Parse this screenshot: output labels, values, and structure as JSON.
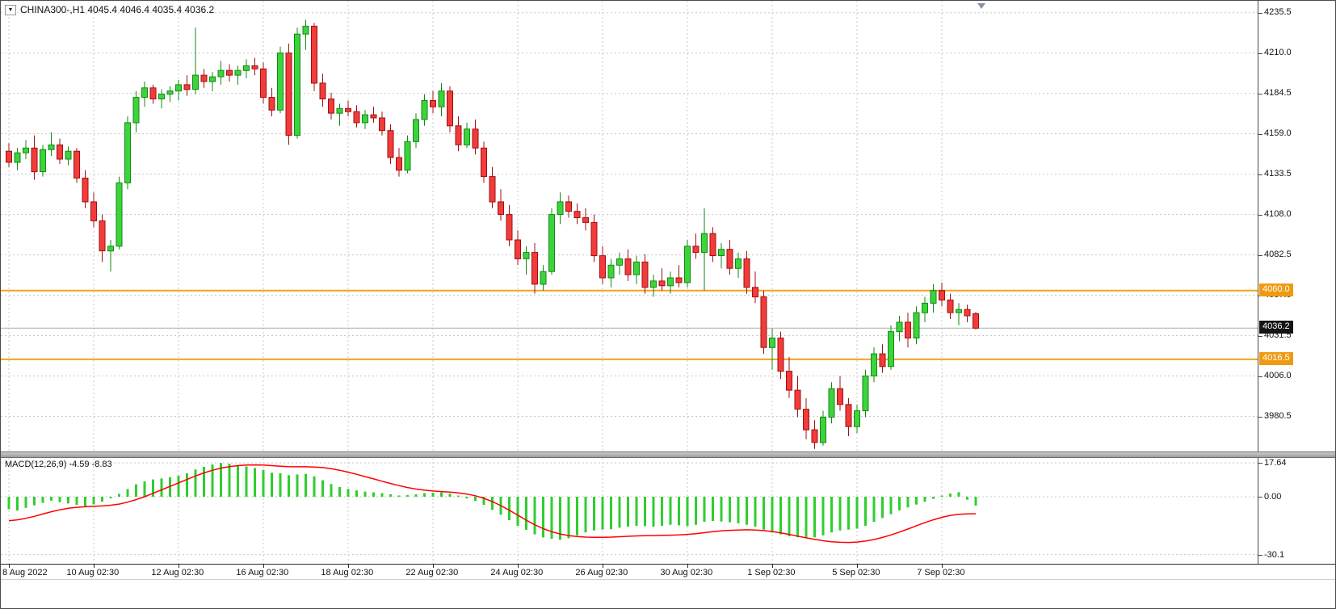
{
  "window": {
    "title_text": "CHINA300-,H1 4045.4 4046.4 4035.4 4036.2",
    "symbol": "CHINA300-",
    "timeframe": "H1",
    "open": "4045.4",
    "high": "4046.4",
    "low": "4035.4",
    "close": "4036.2"
  },
  "icons": {
    "dropdown_triangle": "▼"
  },
  "indicator": {
    "label": "MACD(12,26,9) -4.59 -8.83",
    "name": "MACD",
    "params": "12,26,9",
    "macd_value": "-4.59",
    "signal_value": "-8.83"
  },
  "price_scale": {
    "ticks": [
      {
        "value": 4235.5,
        "label": "4235.5"
      },
      {
        "value": 4210.0,
        "label": "4210.0"
      },
      {
        "value": 4184.5,
        "label": "4184.5"
      },
      {
        "value": 4159.0,
        "label": "4159.0"
      },
      {
        "value": 4133.5,
        "label": "4133.5"
      },
      {
        "value": 4108.0,
        "label": "4108.0"
      },
      {
        "value": 4082.5,
        "label": "4082.5"
      },
      {
        "value": 4057.0,
        "label": "4057.0"
      },
      {
        "value": 4031.5,
        "label": "4031.5"
      },
      {
        "value": 4006.0,
        "label": "4006.0"
      },
      {
        "value": 3980.5,
        "label": "3980.5"
      }
    ],
    "bid": {
      "price": 4036.2,
      "label": "4036.2"
    }
  },
  "levels": [
    {
      "price": 4060.0,
      "label": "4060.0"
    },
    {
      "price": 4016.5,
      "label": "4016.5"
    }
  ],
  "macd_scale": {
    "ticks": [
      {
        "value": 17.64,
        "label": "17.64"
      },
      {
        "value": 0,
        "label": "0.00"
      },
      {
        "value": -30.1,
        "label": "-30.1"
      }
    ]
  },
  "time_axis": {
    "labels": [
      {
        "text": "8 Aug 2022",
        "index": 0
      },
      {
        "text": "10 Aug 02:30",
        "index": 10
      },
      {
        "text": "12 Aug 02:30",
        "index": 20
      },
      {
        "text": "16 Aug 02:30",
        "index": 30
      },
      {
        "text": "18 Aug 02:30",
        "index": 40
      },
      {
        "text": "22 Aug 02:30",
        "index": 50
      },
      {
        "text": "24 Aug 02:30",
        "index": 60
      },
      {
        "text": "26 Aug 02:30",
        "index": 70
      },
      {
        "text": "30 Aug 02:30",
        "index": 80
      },
      {
        "text": "1 Sep 02:30",
        "index": 90
      },
      {
        "text": "5 Sep 02:30",
        "index": 100
      },
      {
        "text": "7 Sep 02:30",
        "index": 110
      }
    ]
  },
  "colors": {
    "up_fill": "#3dd33d",
    "up_stroke": "#128a12",
    "down_fill": "#f23b3b",
    "down_stroke": "#a01010",
    "histogram": "#2fce2f",
    "signal_line": "#ff0000",
    "level_line": "#f5a21b",
    "level_tag_bg": "#ef9b12",
    "bid_tag_bg": "#141414",
    "grid": "#c8c8c8",
    "axis": "#2b2b2b",
    "bid_line": "#ababab"
  },
  "chart_data": {
    "type": "candlestick",
    "title": "CHINA300-,H1",
    "symbol": "CHINA300-",
    "timeframe": "H1",
    "legend": "MACD(12,26,9)",
    "grid": true,
    "last_price": 4036.2,
    "overlay_levels": [
      4060.0,
      4016.5
    ],
    "price_axis": {
      "min": 3958.3,
      "max": 4243.0,
      "ticks": [
        4235.5,
        4210.0,
        4184.5,
        4159.0,
        4133.5,
        4108.0,
        4082.5,
        4057.0,
        4031.5,
        4006.0,
        3980.5
      ]
    },
    "time_labels": [
      "8 Aug 2022",
      "10 Aug 02:30",
      "12 Aug 02:30",
      "16 Aug 02:30",
      "18 Aug 02:30",
      "22 Aug 02:30",
      "24 Aug 02:30",
      "26 Aug 02:30",
      "30 Aug 02:30",
      "1 Sep 02:30",
      "5 Sep 02:30",
      "7 Sep 02:30"
    ],
    "time_label_indices": [
      0,
      10,
      20,
      30,
      40,
      50,
      60,
      70,
      80,
      90,
      100,
      110
    ],
    "candles_ohlc": [
      [
        4148,
        4153,
        4138,
        4141
      ],
      [
        4141,
        4150,
        4136,
        4147
      ],
      [
        4147,
        4155,
        4143,
        4150
      ],
      [
        4150,
        4158,
        4130,
        4135
      ],
      [
        4135,
        4152,
        4132,
        4149
      ],
      [
        4149,
        4160,
        4145,
        4152
      ],
      [
        4152,
        4156,
        4140,
        4143
      ],
      [
        4143,
        4151,
        4139,
        4148
      ],
      [
        4148,
        4150,
        4128,
        4131
      ],
      [
        4131,
        4136,
        4112,
        4116
      ],
      [
        4116,
        4122,
        4100,
        4104
      ],
      [
        4104,
        4108,
        4078,
        4085
      ],
      [
        4085,
        4092,
        4072,
        4088
      ],
      [
        4088,
        4132,
        4086,
        4128
      ],
      [
        4128,
        4170,
        4124,
        4166
      ],
      [
        4166,
        4186,
        4160,
        4182
      ],
      [
        4182,
        4192,
        4176,
        4188
      ],
      [
        4188,
        4190,
        4178,
        4181
      ],
      [
        4181,
        4187,
        4175,
        4184
      ],
      [
        4184,
        4189,
        4179,
        4186
      ],
      [
        4186,
        4193,
        4180,
        4190
      ],
      [
        4190,
        4196,
        4183,
        4187
      ],
      [
        4187,
        4226,
        4184,
        4196
      ],
      [
        4196,
        4200,
        4188,
        4192
      ],
      [
        4192,
        4198,
        4186,
        4195
      ],
      [
        4195,
        4205,
        4190,
        4199
      ],
      [
        4199,
        4203,
        4192,
        4196
      ],
      [
        4196,
        4202,
        4190,
        4199
      ],
      [
        4199,
        4206,
        4194,
        4202
      ],
      [
        4202,
        4207,
        4196,
        4200
      ],
      [
        4200,
        4204,
        4178,
        4182
      ],
      [
        4182,
        4188,
        4170,
        4174
      ],
      [
        4174,
        4214,
        4172,
        4210
      ],
      [
        4210,
        4216,
        4152,
        4158
      ],
      [
        4158,
        4226,
        4156,
        4222
      ],
      [
        4222,
        4231,
        4212,
        4227
      ],
      [
        4227,
        4229,
        4186,
        4191
      ],
      [
        4191,
        4197,
        4176,
        4181
      ],
      [
        4181,
        4185,
        4168,
        4172
      ],
      [
        4172,
        4178,
        4164,
        4175
      ],
      [
        4175,
        4180,
        4170,
        4173
      ],
      [
        4173,
        4177,
        4163,
        4166
      ],
      [
        4166,
        4174,
        4162,
        4171
      ],
      [
        4171,
        4176,
        4166,
        4169
      ],
      [
        4169,
        4173,
        4158,
        4161
      ],
      [
        4161,
        4165,
        4140,
        4144
      ],
      [
        4144,
        4150,
        4132,
        4136
      ],
      [
        4136,
        4158,
        4134,
        4154
      ],
      [
        4154,
        4172,
        4150,
        4168
      ],
      [
        4168,
        4184,
        4164,
        4180
      ],
      [
        4180,
        4186,
        4172,
        4176
      ],
      [
        4176,
        4191,
        4170,
        4186
      ],
      [
        4186,
        4189,
        4160,
        4164
      ],
      [
        4164,
        4170,
        4148,
        4152
      ],
      [
        4152,
        4166,
        4150,
        4162
      ],
      [
        4162,
        4168,
        4146,
        4150
      ],
      [
        4150,
        4154,
        4128,
        4132
      ],
      [
        4132,
        4138,
        4112,
        4116
      ],
      [
        4116,
        4124,
        4104,
        4108
      ],
      [
        4108,
        4114,
        4088,
        4092
      ],
      [
        4092,
        4098,
        4076,
        4080
      ],
      [
        4080,
        4088,
        4070,
        4084
      ],
      [
        4084,
        4090,
        4058,
        4064
      ],
      [
        4064,
        4076,
        4060,
        4072
      ],
      [
        4072,
        4112,
        4070,
        4108
      ],
      [
        4108,
        4122,
        4102,
        4116
      ],
      [
        4116,
        4120,
        4106,
        4110
      ],
      [
        4110,
        4115,
        4102,
        4106
      ],
      [
        4106,
        4112,
        4098,
        4103
      ],
      [
        4103,
        4108,
        4078,
        4082
      ],
      [
        4082,
        4088,
        4064,
        4068
      ],
      [
        4068,
        4080,
        4062,
        4076
      ],
      [
        4076,
        4084,
        4070,
        4080
      ],
      [
        4080,
        4086,
        4066,
        4070
      ],
      [
        4070,
        4082,
        4064,
        4078
      ],
      [
        4078,
        4083,
        4058,
        4062
      ],
      [
        4062,
        4070,
        4056,
        4066
      ],
      [
        4066,
        4074,
        4060,
        4063
      ],
      [
        4063,
        4072,
        4058,
        4068
      ],
      [
        4068,
        4076,
        4062,
        4065
      ],
      [
        4065,
        4092,
        4062,
        4088
      ],
      [
        4088,
        4096,
        4080,
        4084
      ],
      [
        4084,
        4112,
        4060,
        4096
      ],
      [
        4096,
        4100,
        4078,
        4082
      ],
      [
        4082,
        4090,
        4074,
        4086
      ],
      [
        4086,
        4092,
        4070,
        4074
      ],
      [
        4074,
        4084,
        4068,
        4080
      ],
      [
        4080,
        4085,
        4058,
        4062
      ],
      [
        4062,
        4072,
        4052,
        4056
      ],
      [
        4056,
        4060,
        4020,
        4024
      ],
      [
        4024,
        4036,
        4010,
        4030
      ],
      [
        4030,
        4034,
        4004,
        4009
      ],
      [
        4009,
        4018,
        3992,
        3997
      ],
      [
        3997,
        4006,
        3980,
        3985
      ],
      [
        3985,
        3992,
        3966,
        3972
      ],
      [
        3972,
        3978,
        3960,
        3964
      ],
      [
        3964,
        3984,
        3962,
        3980
      ],
      [
        3980,
        4002,
        3976,
        3998
      ],
      [
        3998,
        4006,
        3984,
        3988
      ],
      [
        3988,
        3992,
        3968,
        3974
      ],
      [
        3974,
        3988,
        3970,
        3984
      ],
      [
        3984,
        4010,
        3980,
        4006
      ],
      [
        4006,
        4024,
        4002,
        4020
      ],
      [
        4020,
        4026,
        4008,
        4012
      ],
      [
        4012,
        4038,
        4010,
        4034
      ],
      [
        4034,
        4044,
        4028,
        4040
      ],
      [
        4040,
        4046,
        4024,
        4030
      ],
      [
        4030,
        4050,
        4026,
        4046
      ],
      [
        4046,
        4056,
        4040,
        4052
      ],
      [
        4052,
        4064,
        4046,
        4060
      ],
      [
        4060,
        4065,
        4050,
        4054
      ],
      [
        4054,
        4058,
        4042,
        4046
      ],
      [
        4046,
        4052,
        4038,
        4048
      ],
      [
        4048,
        4051,
        4040,
        4044
      ],
      [
        4045.4,
        4046.4,
        4035.4,
        4036.2
      ]
    ],
    "macd": {
      "axis": {
        "min": -34.9,
        "max": 20.2,
        "ticks": [
          17.64,
          0,
          -30.1
        ]
      },
      "current": {
        "macd": -4.59,
        "signal": -8.83
      },
      "histogram": [
        -6.5,
        -7.2,
        -5.8,
        -4.5,
        -3.2,
        -2.0,
        -2.8,
        -3.5,
        -4.2,
        -5.0,
        -4.0,
        -2.5,
        -0.8,
        1.5,
        4.0,
        6.5,
        8.0,
        9.0,
        9.5,
        10.2,
        11.0,
        12.2,
        14.2,
        15.6,
        16.8,
        17.6,
        17.2,
        16.5,
        15.8,
        15.0,
        14.0,
        12.5,
        12.2,
        11.2,
        11.6,
        11.9,
        10.6,
        8.6,
        6.6,
        5.1,
        4.1,
        3.3,
        2.7,
        2.3,
        1.9,
        1.3,
        0.7,
        0.9,
        1.3,
        1.9,
        2.1,
        2.3,
        1.6,
        0.6,
        -0.9,
        -2.2,
        -4.2,
        -6.8,
        -9.4,
        -12.2,
        -15.2,
        -17.2,
        -19.6,
        -21.2,
        -21.9,
        -22.4,
        -21.6,
        -20.1,
        -18.6,
        -17.6,
        -17.1,
        -16.9,
        -16.1,
        -15.6,
        -15.1,
        -15.3,
        -15.6,
        -15.1,
        -14.6,
        -14.9,
        -15.3,
        -14.6,
        -13.1,
        -12.6,
        -12.9,
        -13.3,
        -13.9,
        -14.6,
        -15.6,
        -17.1,
        -18.6,
        -19.6,
        -20.6,
        -21.1,
        -21.6,
        -21.1,
        -20.1,
        -18.6,
        -17.6,
        -17.1,
        -16.6,
        -15.1,
        -13.1,
        -11.1,
        -9.1,
        -7.1,
        -5.6,
        -4.1,
        -2.6,
        -1.1,
        0.6,
        1.6,
        2.4,
        -1.5,
        -4.59
      ],
      "signal": [
        -12.5,
        -12.0,
        -11.2,
        -10.2,
        -9.0,
        -7.8,
        -6.8,
        -6.0,
        -5.5,
        -5.2,
        -5.0,
        -4.8,
        -4.4,
        -3.8,
        -2.8,
        -1.5,
        0.0,
        1.8,
        3.6,
        5.4,
        7.2,
        9.0,
        10.8,
        12.4,
        13.8,
        14.9,
        15.7,
        16.2,
        16.5,
        16.6,
        16.5,
        16.2,
        15.9,
        15.7,
        15.6,
        15.6,
        15.5,
        15.2,
        14.6,
        13.8,
        12.8,
        11.7,
        10.5,
        9.3,
        8.1,
        6.9,
        5.8,
        4.8,
        4.0,
        3.4,
        3.0,
        2.7,
        2.4,
        2.0,
        1.4,
        0.5,
        -0.8,
        -2.5,
        -4.6,
        -7.0,
        -9.6,
        -12.2,
        -14.6,
        -16.6,
        -18.2,
        -19.4,
        -20.2,
        -20.7,
        -21.0,
        -21.1,
        -21.1,
        -21.0,
        -20.8,
        -20.6,
        -20.4,
        -20.3,
        -20.2,
        -20.1,
        -20.0,
        -19.9,
        -19.6,
        -19.2,
        -18.7,
        -18.2,
        -17.8,
        -17.5,
        -17.3,
        -17.2,
        -17.3,
        -17.6,
        -18.1,
        -18.8,
        -19.6,
        -20.5,
        -21.4,
        -22.2,
        -22.9,
        -23.4,
        -23.7,
        -23.8,
        -23.6,
        -23.1,
        -22.3,
        -21.2,
        -19.9,
        -18.4,
        -16.8,
        -15.1,
        -13.5,
        -12.0,
        -10.7,
        -9.7,
        -9.1,
        -8.9,
        -8.83
      ]
    }
  }
}
